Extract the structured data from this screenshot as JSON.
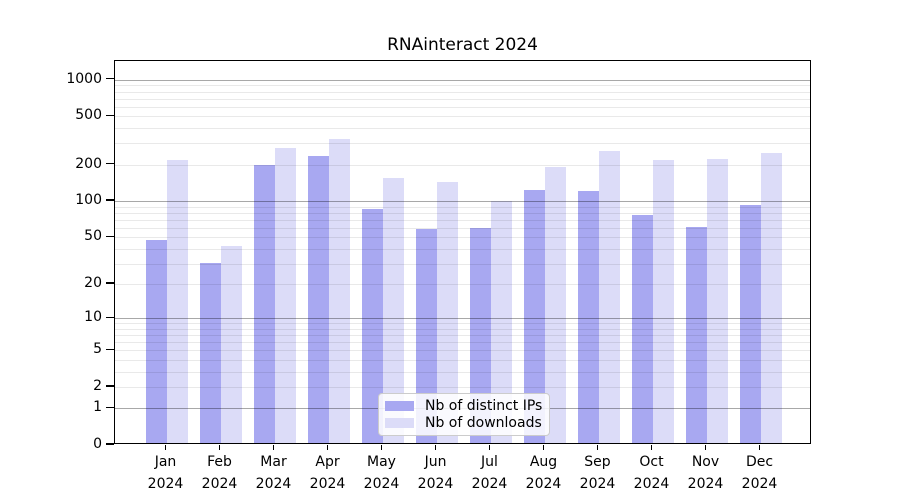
{
  "title": "RNAinteract 2024",
  "legend": {
    "items": [
      {
        "label": "Nb of distinct IPs",
        "color": "#a8a8f1"
      },
      {
        "label": "Nb of downloads",
        "color": "#dcdcf8"
      }
    ]
  },
  "chart_data": {
    "type": "bar",
    "title": "RNAinteract 2024",
    "categories": [
      "Jan 2024",
      "Feb 2024",
      "Mar 2024",
      "Apr 2024",
      "May 2024",
      "Jun 2024",
      "Jul 2024",
      "Aug 2024",
      "Sep 2024",
      "Oct 2024",
      "Nov 2024",
      "Dec 2024"
    ],
    "x_tick_labels": [
      [
        "Jan",
        "2024"
      ],
      [
        "Feb",
        "2024"
      ],
      [
        "Mar",
        "2024"
      ],
      [
        "Apr",
        "2024"
      ],
      [
        "May",
        "2024"
      ],
      [
        "Jun",
        "2024"
      ],
      [
        "Jul",
        "2024"
      ],
      [
        "Aug",
        "2024"
      ],
      [
        "Sep",
        "2024"
      ],
      [
        "Oct",
        "2024"
      ],
      [
        "Nov",
        "2024"
      ],
      [
        "Dec",
        "2024"
      ]
    ],
    "series": [
      {
        "name": "Nb of distinct IPs",
        "color": "#a8a8f1",
        "values": [
          46,
          29,
          190,
          229,
          82,
          56,
          58,
          119,
          117,
          74,
          59,
          89
        ]
      },
      {
        "name": "Nb of downloads",
        "color": "#dcdcf8",
        "values": [
          210,
          41,
          267,
          312,
          150,
          139,
          97,
          183,
          250,
          210,
          215,
          239
        ]
      }
    ],
    "xlabel": "",
    "ylabel": "",
    "yscale": "log1p",
    "ylim": [
      0,
      1430
    ],
    "yticks": [
      0,
      1,
      2,
      5,
      10,
      20,
      50,
      100,
      200,
      500,
      1000
    ],
    "major_gridlines": [
      1,
      10,
      100,
      1000
    ],
    "minor_gridlines": [
      2,
      3,
      4,
      5,
      6,
      7,
      8,
      9,
      20,
      30,
      40,
      50,
      60,
      70,
      80,
      90,
      200,
      300,
      400,
      500,
      600,
      700,
      800,
      900
    ],
    "grid": true,
    "legend_position": "lower-center"
  }
}
